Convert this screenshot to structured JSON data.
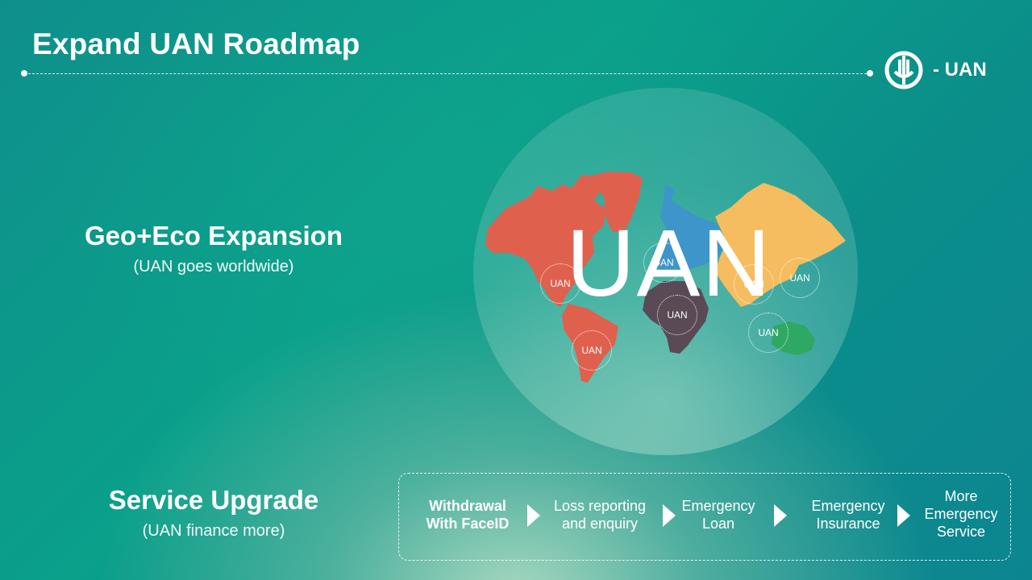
{
  "header": {
    "title": "Expand UAN Roadmap",
    "logo_label": "- UAN"
  },
  "geo": {
    "title": "Geo+Eco Expansion",
    "subtitle": "(UAN goes worldwide)"
  },
  "service": {
    "title": "Service Upgrade",
    "subtitle": "(UAN finance more)"
  },
  "map": {
    "center_label": "UAN",
    "pins": [
      "UAN",
      "UAN",
      "UAN",
      "UAN",
      "UAN",
      "UAN",
      "UAN"
    ],
    "colors": {
      "americas": "#e0604e",
      "europe": "#3d95c9",
      "africa": "#5a4a55",
      "asia": "#f5bd5f",
      "oceania": "#2fa863"
    }
  },
  "steps": [
    {
      "label": "Withdrawal\nWith FaceID"
    },
    {
      "label": "Loss reporting\nand enquiry"
    },
    {
      "label": "Emergency\nLoan"
    },
    {
      "label": "Emergency\nInsurance"
    },
    {
      "label": "More\nEmergency\nService"
    }
  ]
}
